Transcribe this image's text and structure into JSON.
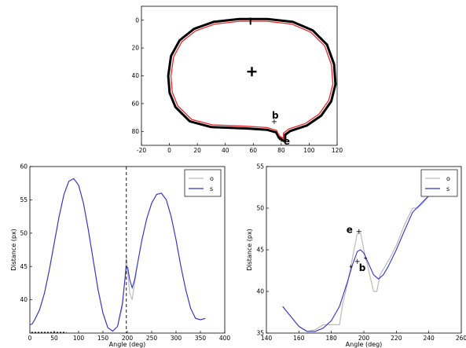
{
  "chart_data": [
    {
      "type": "image-contour",
      "xlim": [
        -20,
        120
      ],
      "ylim": [
        90,
        -10
      ],
      "xticks": [
        -20,
        0,
        20,
        40,
        60,
        80,
        100,
        120
      ],
      "yticks": [
        0,
        20,
        40,
        60,
        80
      ],
      "center": [
        59,
        37
      ],
      "top_marker": [
        58,
        1
      ],
      "annotations": [
        {
          "text": "b",
          "point": [
            75,
            73
          ]
        },
        {
          "text": "e",
          "point": [
            80,
            86
          ]
        }
      ],
      "contour_color": "#e8262a",
      "blob_color": "#000000"
    },
    {
      "type": "line",
      "xlabel": "Angle (deg)",
      "ylabel": "Distance (px)",
      "xlim": [
        0,
        400
      ],
      "ylim": [
        35,
        60
      ],
      "xticks": [
        0,
        50,
        100,
        150,
        200,
        250,
        300,
        350,
        400
      ],
      "yticks": [
        40,
        45,
        50,
        55,
        60
      ],
      "vline": 198,
      "legend_position": "top-right",
      "series": [
        {
          "name": "o",
          "color": "#bbbbbb",
          "x": [
            0,
            5,
            10,
            20,
            30,
            40,
            50,
            60,
            70,
            80,
            90,
            100,
            110,
            120,
            130,
            140,
            150,
            160,
            170,
            180,
            190,
            195,
            198,
            201,
            205,
            210,
            215,
            220,
            230,
            240,
            250,
            260,
            270,
            280,
            290,
            300,
            310,
            320,
            330,
            340,
            350,
            360
          ],
          "y": [
            36.2,
            36.4,
            37,
            38.5,
            41,
            44.5,
            48.5,
            52.5,
            55.8,
            57.8,
            58.2,
            57.2,
            54.5,
            50.5,
            46,
            41.5,
            38,
            35.8,
            35.3,
            36,
            39,
            43,
            46.5,
            44,
            41,
            40,
            42.5,
            45,
            49,
            52.2,
            54.5,
            55.8,
            56,
            55,
            52.5,
            49,
            45,
            41.5,
            38.7,
            37.2,
            37,
            37.2
          ]
        },
        {
          "name": "s",
          "color": "#3333cc",
          "x": [
            0,
            5,
            10,
            20,
            30,
            40,
            50,
            60,
            70,
            80,
            90,
            100,
            110,
            120,
            130,
            140,
            150,
            160,
            170,
            180,
            190,
            195,
            198,
            201,
            205,
            210,
            215,
            220,
            230,
            240,
            250,
            260,
            270,
            280,
            290,
            300,
            310,
            320,
            330,
            340,
            350,
            360
          ],
          "y": [
            36.2,
            36.4,
            37,
            38.5,
            41,
            44.5,
            48.5,
            52.5,
            55.8,
            57.8,
            58.2,
            57.2,
            54.5,
            50.5,
            46,
            41.5,
            38,
            35.8,
            35.3,
            36,
            39.5,
            43,
            45,
            44.8,
            43,
            41.8,
            43,
            45,
            49,
            52.2,
            54.5,
            55.8,
            56,
            55,
            52.5,
            49,
            45,
            41.5,
            38.7,
            37.2,
            37,
            37.2
          ]
        }
      ]
    },
    {
      "type": "line",
      "xlabel": "Angle (deg)",
      "ylabel": "Distance (px)",
      "xlim": [
        140,
        260
      ],
      "ylim": [
        35,
        55
      ],
      "xticks": [
        140,
        160,
        180,
        200,
        220,
        240,
        260
      ],
      "yticks": [
        35,
        40,
        45,
        50,
        55
      ],
      "legend_position": "top-right",
      "annotations": [
        {
          "text": "e",
          "point": [
            197,
            47.2
          ]
        },
        {
          "text": "b",
          "point": [
            196,
            43.6
          ]
        }
      ],
      "series": [
        {
          "name": "o",
          "color": "#bbbbbb",
          "x": [
            150,
            155,
            160,
            165,
            170,
            175,
            180,
            185,
            187,
            190,
            193,
            196,
            198,
            200,
            203,
            206,
            208,
            210,
            213,
            216,
            220,
            225,
            230,
            233,
            236,
            240
          ],
          "y": [
            38.2,
            37,
            35.8,
            35.2,
            35.4,
            36,
            36,
            36,
            38.5,
            41,
            44,
            47,
            47,
            45,
            42.5,
            40,
            40,
            42,
            43,
            44,
            45.5,
            48,
            50,
            50,
            50.5,
            51.5
          ]
        },
        {
          "name": "s",
          "color": "#3333cc",
          "x": [
            150,
            155,
            160,
            165,
            170,
            175,
            180,
            185,
            190,
            193,
            196,
            198,
            200,
            203,
            206,
            209,
            212,
            215,
            220,
            225,
            230,
            235,
            240
          ],
          "y": [
            38.2,
            37,
            35.8,
            35.2,
            35.2,
            35.6,
            36.5,
            38.2,
            41.2,
            43.2,
            44.8,
            45,
            44.6,
            43.3,
            42,
            41.5,
            42,
            43,
            45,
            47.3,
            49.5,
            50.5,
            51.5
          ]
        }
      ]
    }
  ]
}
